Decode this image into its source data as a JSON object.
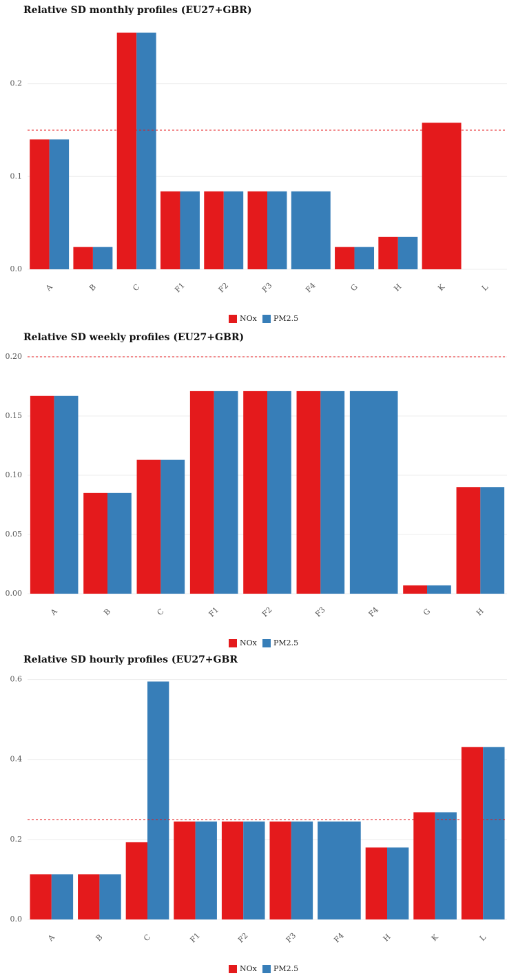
{
  "chart_data": [
    {
      "type": "bar",
      "title": "Relative SD monthly profiles (EU27+GBR)",
      "categories": [
        "A",
        "B",
        "C",
        "F1",
        "F2",
        "F3",
        "F4",
        "G",
        "H",
        "K",
        "L"
      ],
      "series": [
        {
          "name": "NOx",
          "color": "#e41a1c",
          "values": [
            0.14,
            0.024,
            0.255,
            0.084,
            0.084,
            0.084,
            null,
            0.024,
            0.035,
            0.158,
            null
          ]
        },
        {
          "name": "PM2.5",
          "color": "#377eb8",
          "values": [
            0.14,
            0.024,
            0.255,
            0.084,
            0.084,
            0.084,
            0.084,
            0.024,
            0.035,
            null,
            null
          ]
        }
      ],
      "ylim": [
        0,
        0.268
      ],
      "yticks": [
        {
          "value": 0,
          "label": "0.0"
        },
        0.1,
        0.2
      ],
      "grid": true,
      "hline": 0.15,
      "hline_color": "#e41a1c",
      "legend": "bottom"
    },
    {
      "type": "bar",
      "title": "Relative SD weekly profiles (EU27+GBR)",
      "categories": [
        "A",
        "B",
        "C",
        "F1",
        "F2",
        "F3",
        "F4",
        "G",
        "H"
      ],
      "series": [
        {
          "name": "NOx",
          "color": "#e41a1c",
          "values": [
            0.167,
            0.085,
            0.113,
            0.171,
            0.171,
            0.171,
            null,
            0.007,
            0.09
          ]
        },
        {
          "name": "PM2.5",
          "color": "#377eb8",
          "values": [
            0.167,
            0.085,
            0.113,
            0.171,
            0.171,
            0.171,
            0.171,
            0.007,
            0.09
          ]
        }
      ],
      "ylim": [
        0,
        0.207
      ],
      "yticks": [
        {
          "value": 0,
          "label": "0.00"
        },
        0.05,
        {
          "value": 0.1,
          "label": "0.10"
        },
        0.15,
        {
          "value": 0.2,
          "label": "0.20"
        }
      ],
      "grid": true,
      "hline": 0.2,
      "hline_color": "#e41a1c",
      "legend": "bottom"
    },
    {
      "type": "bar",
      "title": "Relative SD hourly profiles (EU27+GBR",
      "categories": [
        "A",
        "B",
        "C",
        "F1",
        "F2",
        "F3",
        "F4",
        "H",
        "K",
        "L"
      ],
      "series": [
        {
          "name": "NOx",
          "color": "#e41a1c",
          "values": [
            0.113,
            0.113,
            0.193,
            0.245,
            0.245,
            0.245,
            null,
            0.18,
            0.268,
            0.431
          ]
        },
        {
          "name": "PM2.5",
          "color": "#377eb8",
          "values": [
            0.113,
            0.113,
            0.595,
            0.245,
            0.245,
            0.245,
            0.245,
            0.18,
            0.268,
            0.431
          ]
        }
      ],
      "ylim": [
        0,
        0.62
      ],
      "yticks": [
        {
          "value": 0,
          "label": "0.0"
        },
        0.2,
        0.4,
        0.6
      ],
      "grid": true,
      "hline": 0.25,
      "hline_color": "#e41a1c",
      "legend": "bottom"
    }
  ]
}
